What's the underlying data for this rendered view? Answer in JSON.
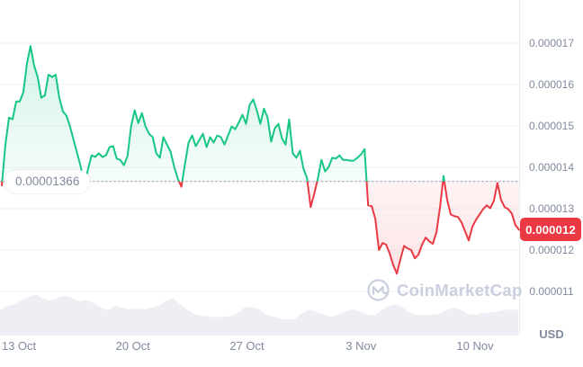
{
  "watermark": {
    "brand": "CoinMarketCap"
  },
  "chart_data": {
    "type": "line",
    "grid": true,
    "legend": false,
    "baseline": {
      "value": 1.366e-05,
      "label": "0.00001366"
    },
    "current_price": {
      "value": 1.2e-05,
      "label": "0.000012"
    },
    "colors": {
      "up": "#16c784",
      "down": "#ea3943",
      "axis_text": "#808a9d",
      "grid": "#f0f1f5",
      "plot_border": "#e9ebf1",
      "baseline_dots": "#b3bac9",
      "volume_fill": "#edeff4",
      "watermark": "#c9cfde",
      "badge_text": "#ffffff"
    },
    "y_axis": {
      "unit": "USD",
      "ticks": [
        {
          "label": "0.000017",
          "value": 1.7e-05
        },
        {
          "label": "0.000016",
          "value": 1.6e-05
        },
        {
          "label": "0.000015",
          "value": 1.5e-05
        },
        {
          "label": "0.000014",
          "value": 1.4e-05
        },
        {
          "label": "0.000013",
          "value": 1.3e-05
        },
        {
          "label": "0.000012",
          "value": 1.2e-05
        },
        {
          "label": "0.000011",
          "value": 1.1e-05
        }
      ]
    },
    "x_axis": {
      "ticks": [
        {
          "label": "13 Oct",
          "day": 0
        },
        {
          "label": "20 Oct",
          "day": 7
        },
        {
          "label": "27 Oct",
          "day": 14
        },
        {
          "label": "3 Nov",
          "day": 21
        },
        {
          "label": "10 Nov",
          "day": 28
        }
      ]
    },
    "price_series": {
      "unit": "USD",
      "scale": 1e-06,
      "start_day": -1.05,
      "end_day": 30.7,
      "values_micro_usd": [
        13.56,
        14.55,
        15.2,
        15.16,
        15.59,
        15.59,
        15.81,
        16.5,
        16.93,
        16.46,
        16.18,
        15.68,
        15.74,
        16.24,
        16.18,
        16.24,
        15.68,
        15.35,
        15.25,
        14.99,
        14.66,
        14.34,
        14.01,
        13.56,
        13.95,
        14.29,
        14.25,
        14.34,
        14.25,
        14.29,
        14.49,
        14.51,
        14.21,
        14.18,
        14.05,
        14.27,
        14.99,
        15.38,
        15.07,
        15.31,
        14.99,
        14.81,
        14.73,
        14.34,
        14.23,
        14.73,
        14.55,
        14.38,
        14.01,
        13.73,
        13.53,
        14.08,
        14.6,
        14.77,
        14.51,
        14.66,
        14.81,
        14.49,
        14.73,
        14.6,
        14.77,
        14.73,
        14.55,
        14.77,
        14.99,
        14.92,
        15.09,
        15.27,
        15.05,
        15.51,
        15.64,
        15.38,
        15.05,
        15.42,
        15.2,
        14.62,
        14.94,
        15.05,
        14.7,
        14.55,
        15.16,
        14.34,
        14.23,
        14.4,
        13.97,
        13.73,
        13.04,
        13.36,
        13.73,
        14.18,
        13.9,
        14.01,
        14.23,
        14.21,
        14.29,
        14.18,
        14.18,
        14.16,
        14.16,
        14.23,
        14.31,
        14.44,
        13.08,
        13.06,
        12.75,
        12.0,
        12.17,
        12.13,
        11.91,
        11.63,
        11.43,
        11.78,
        12.1,
        12.04,
        12.0,
        11.8,
        11.89,
        12.13,
        12.3,
        12.21,
        12.15,
        12.43,
        13.04,
        13.79,
        13.21,
        12.86,
        12.82,
        12.8,
        12.67,
        12.45,
        12.23,
        12.56,
        12.73,
        12.86,
        12.99,
        13.08,
        13.01,
        13.19,
        13.62,
        13.21,
        13.04,
        12.99,
        12.88,
        12.6,
        12.49
      ]
    },
    "volume_series": {
      "relative": true,
      "start_day": -1.16,
      "end_day": 30.65,
      "values": [
        0.6,
        0.7,
        0.74,
        0.83,
        0.91,
        0.98,
        0.87,
        0.83,
        0.89,
        0.94,
        0.89,
        0.81,
        0.85,
        0.77,
        0.66,
        0.6,
        0.7,
        0.66,
        0.62,
        0.64,
        0.62,
        0.66,
        0.7,
        0.81,
        0.89,
        0.74,
        0.62,
        0.51,
        0.47,
        0.45,
        0.43,
        0.45,
        0.45,
        0.53,
        0.66,
        0.68,
        0.62,
        0.49,
        0.45,
        0.4,
        0.38,
        0.4,
        0.53,
        0.62,
        0.55,
        0.49,
        0.45,
        0.49,
        0.57,
        0.62,
        0.57,
        0.49,
        0.47,
        0.6,
        0.7,
        0.74,
        0.66,
        0.53,
        0.49,
        0.49,
        0.49,
        0.51,
        0.6,
        0.66,
        0.62,
        0.51,
        0.49,
        0.53,
        0.55,
        0.57,
        0.6,
        0.62,
        0.6
      ]
    }
  }
}
